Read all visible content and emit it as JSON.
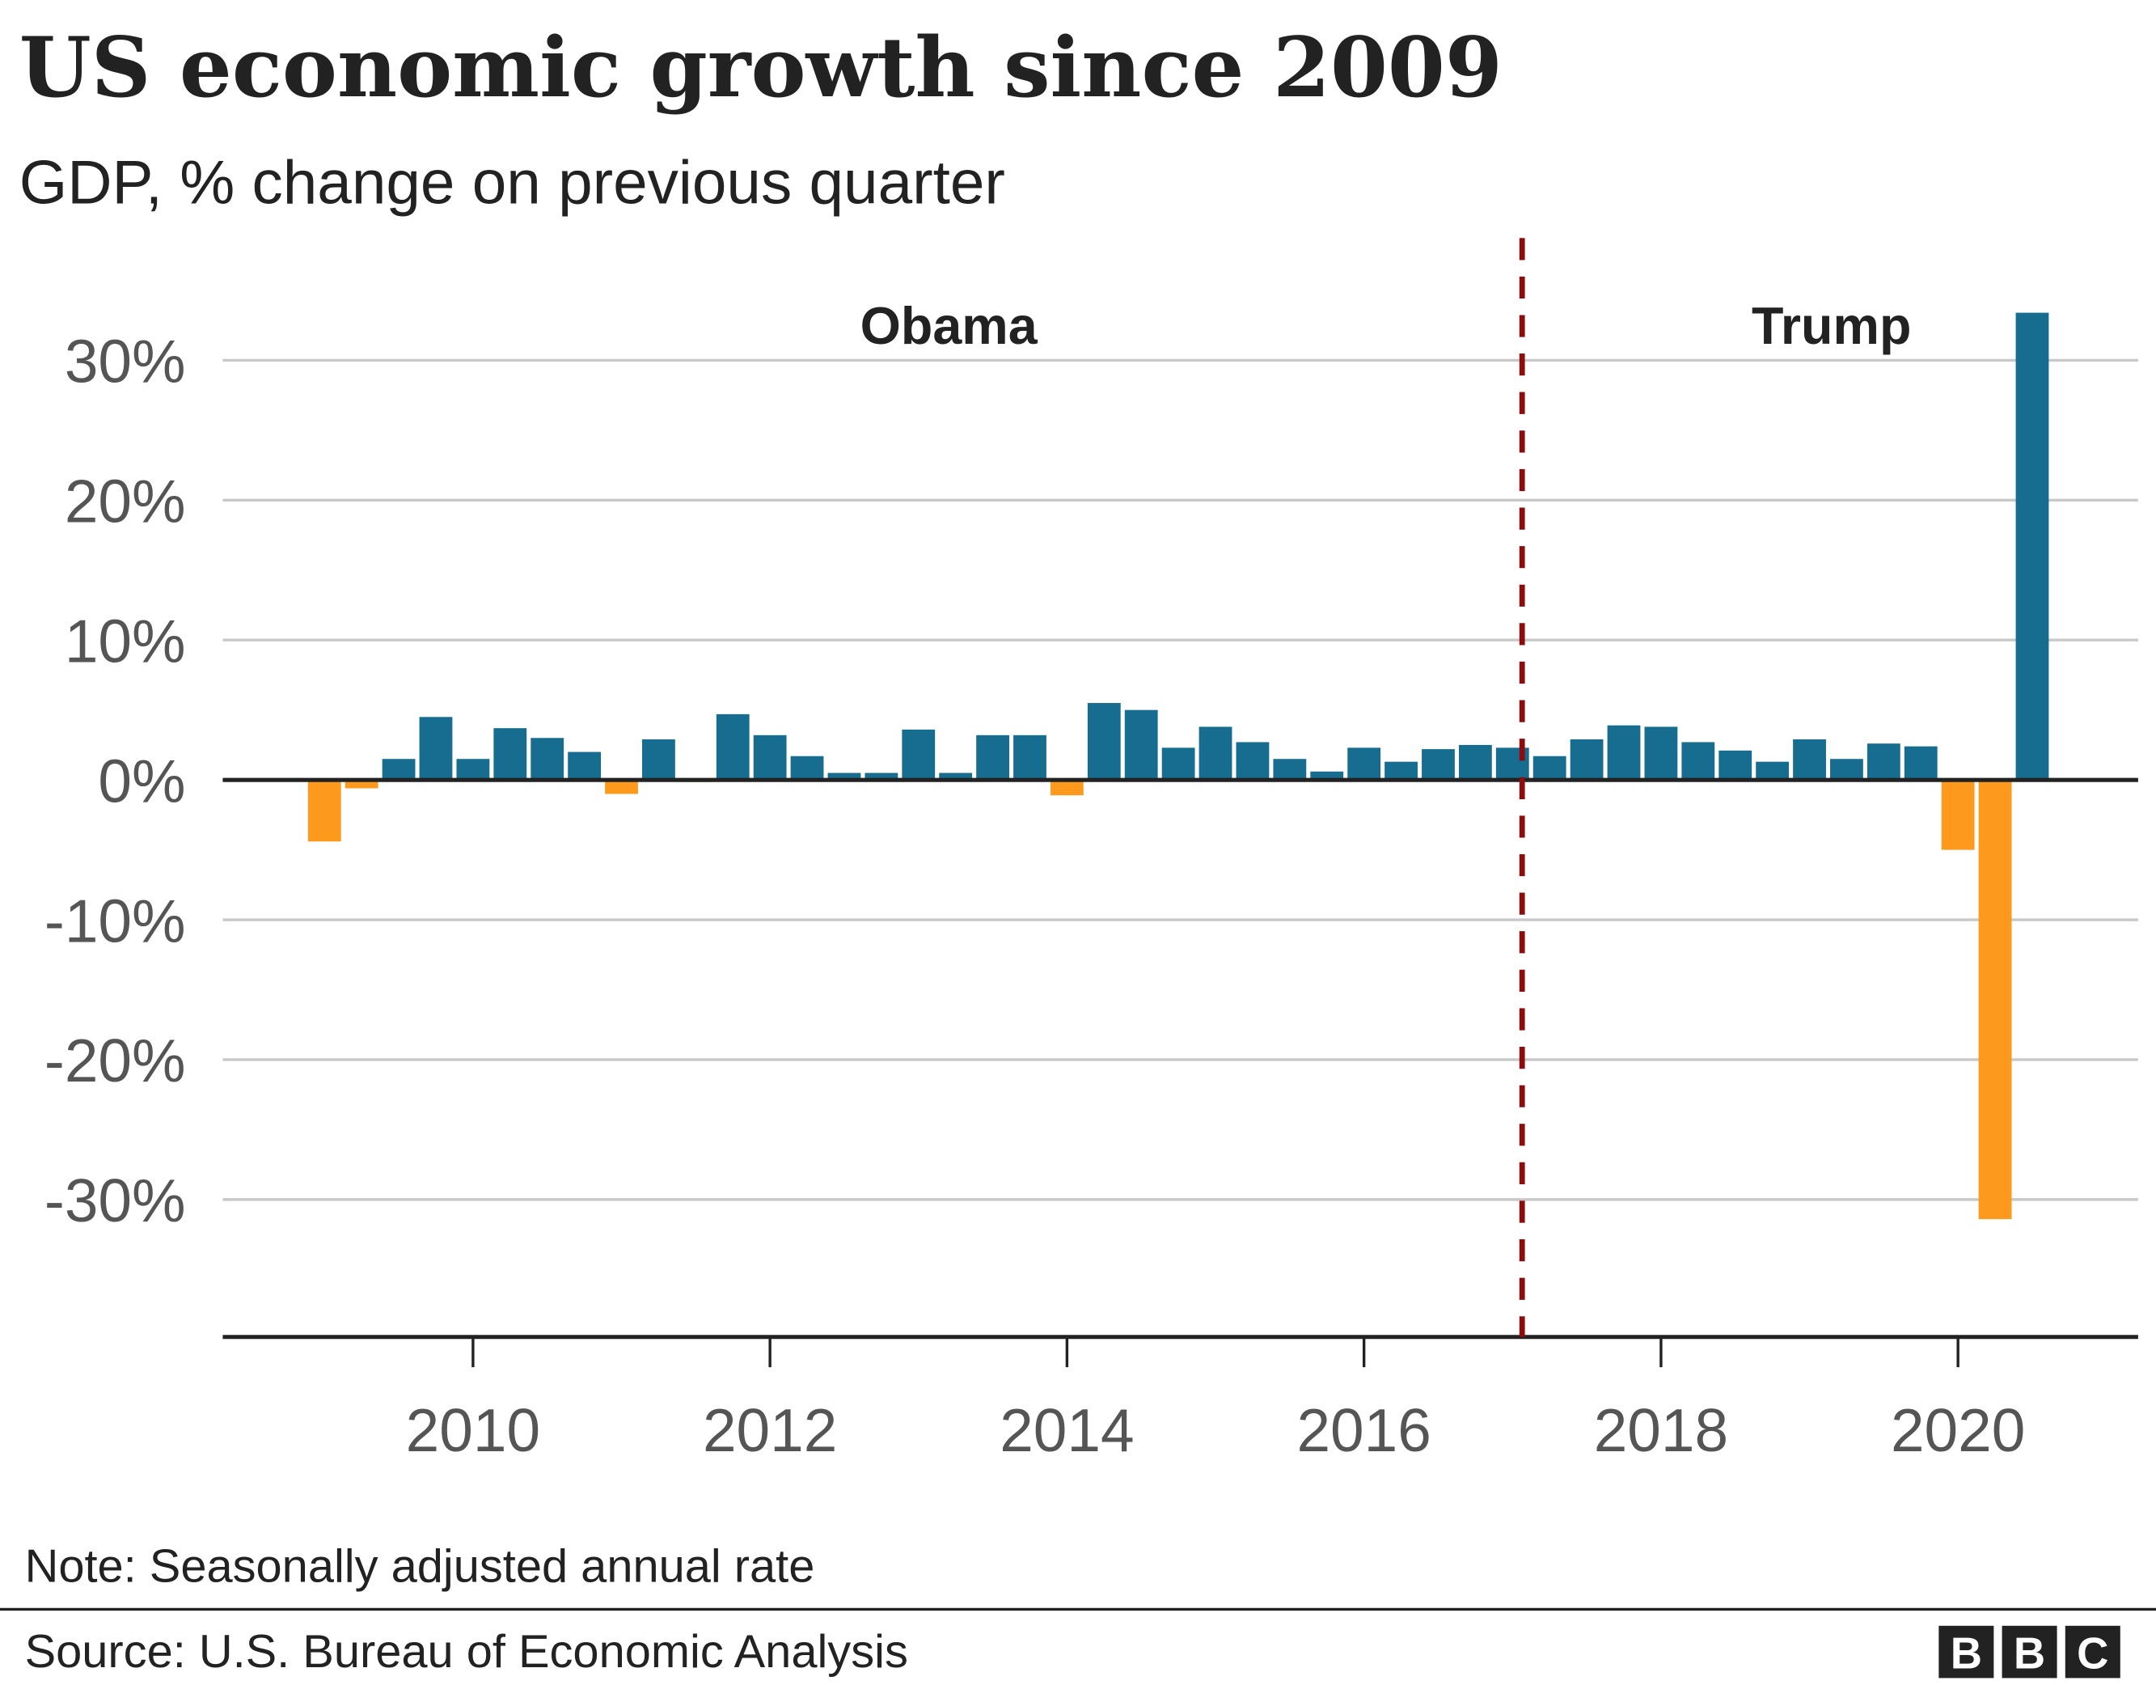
{
  "chart_data": {
    "type": "bar",
    "title": "US economic growth since 2009",
    "subtitle": "GDP, % change on previous quarter",
    "ylim": [
      -40,
      35
    ],
    "yticks": [
      30,
      20,
      10,
      0,
      -10,
      -20,
      -30
    ],
    "ytick_labels": [
      "30%",
      "20%",
      "10%",
      "0%",
      "-10%",
      "-20%",
      "-30%"
    ],
    "xtick_labels": [
      "2010",
      "2012",
      "2014",
      "2016",
      "2018",
      "2020"
    ],
    "grid": true,
    "categories": [
      "2009Q1",
      "2009Q2",
      "2009Q3",
      "2009Q4",
      "2010Q1",
      "2010Q2",
      "2010Q3",
      "2010Q4",
      "2011Q1",
      "2011Q2",
      "2011Q3",
      "2011Q4",
      "2012Q1",
      "2012Q2",
      "2012Q3",
      "2012Q4",
      "2013Q1",
      "2013Q2",
      "2013Q3",
      "2013Q4",
      "2014Q1",
      "2014Q2",
      "2014Q3",
      "2014Q4",
      "2015Q1",
      "2015Q2",
      "2015Q3",
      "2015Q4",
      "2016Q1",
      "2016Q2",
      "2016Q3",
      "2016Q4",
      "2017Q1",
      "2017Q2",
      "2017Q3",
      "2017Q4",
      "2018Q1",
      "2018Q2",
      "2018Q3",
      "2018Q4",
      "2019Q1",
      "2019Q2",
      "2019Q3",
      "2019Q4",
      "2020Q1",
      "2020Q2",
      "2020Q3"
    ],
    "values": [
      -4.4,
      -0.6,
      1.5,
      4.5,
      1.5,
      3.7,
      3.0,
      2.0,
      -1.0,
      2.9,
      -0.1,
      4.7,
      3.2,
      1.7,
      0.5,
      0.5,
      3.6,
      0.5,
      3.2,
      3.2,
      -1.1,
      5.5,
      5.0,
      2.3,
      3.8,
      2.7,
      1.5,
      0.6,
      2.3,
      1.3,
      2.2,
      2.5,
      2.3,
      1.7,
      2.9,
      3.9,
      3.8,
      2.7,
      2.1,
      1.3,
      2.9,
      1.5,
      2.6,
      2.4,
      -5.0,
      -31.4,
      33.4
    ],
    "annotations": [
      {
        "text": "Obama"
      },
      {
        "text": "Trump"
      }
    ],
    "divider": "2017-01-20",
    "colors": {
      "positive": "#176d8f",
      "negative": "#fd9a1e",
      "divider": "#8b0d0d"
    }
  },
  "note": "Note: Seasonally adjusted annual rate",
  "source": "Source: U.S. Bureau of Economic Analysis",
  "logo": "BBC"
}
